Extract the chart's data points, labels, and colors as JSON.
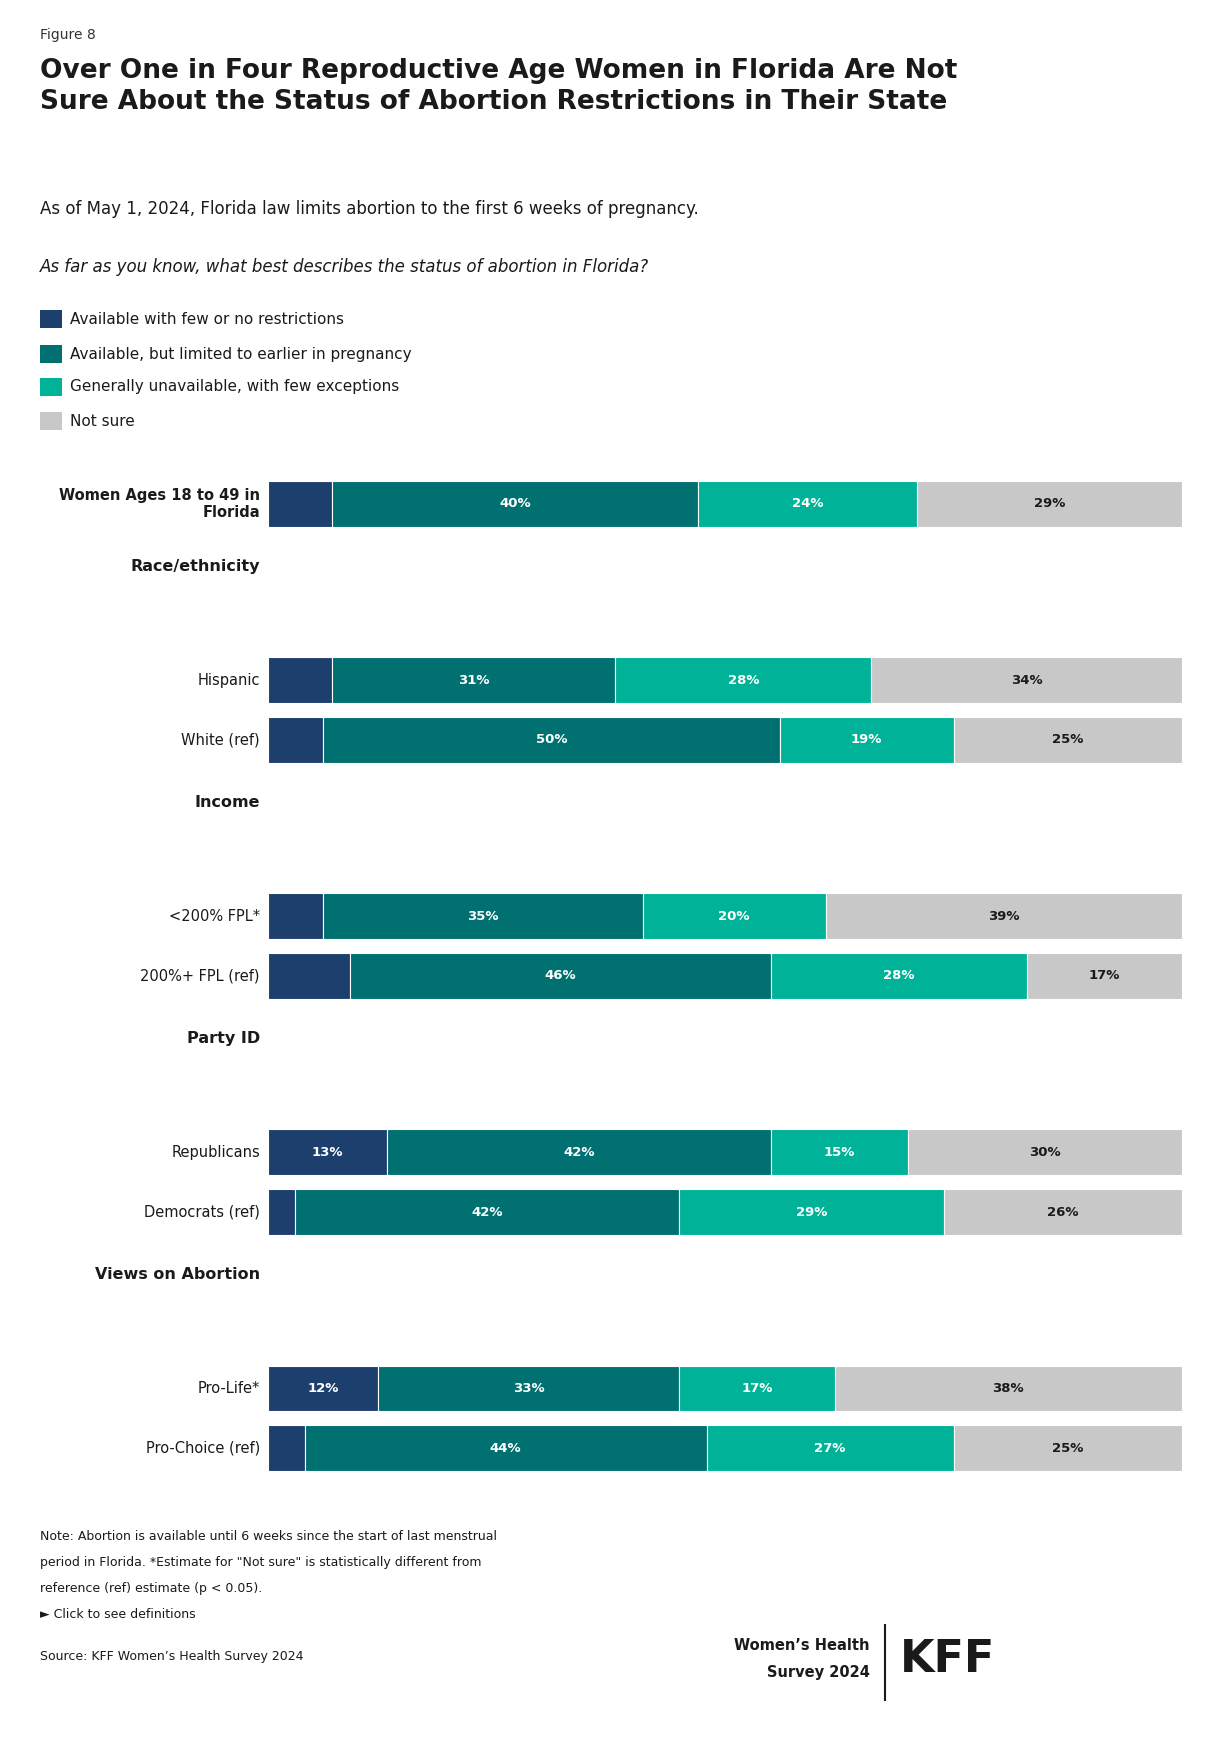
{
  "figure_label": "Figure 8",
  "title": "Over One in Four Reproductive Age Women in Florida Are Not\nSure About the Status of Abortion Restrictions in Their State",
  "subtitle": "As of May 1, 2024, Florida law limits abortion to the first 6 weeks of pregnancy.",
  "question": "As far as you know, what best describes the status of abortion in Florida?",
  "legend_labels": [
    "Available with few or no restrictions",
    "Available, but limited to earlier in pregnancy",
    "Generally unavailable, with few exceptions",
    "Not sure"
  ],
  "colors": [
    "#1c3f6e",
    "#007070",
    "#00b398",
    "#c8c8c8"
  ],
  "categories": [
    "Women Ages 18 to 49 in\nFlorida",
    "Hispanic",
    "White (ref)",
    "<200% FPL*",
    "200%+ FPL (ref)",
    "Republicans",
    "Democrats (ref)",
    "Pro-Life*",
    "Pro-Choice (ref)"
  ],
  "category_bold": [
    true,
    false,
    false,
    false,
    false,
    false,
    false,
    false,
    false
  ],
  "values": [
    [
      7,
      40,
      24,
      29
    ],
    [
      7,
      31,
      28,
      34
    ],
    [
      6,
      50,
      19,
      25
    ],
    [
      6,
      35,
      20,
      39
    ],
    [
      9,
      46,
      28,
      17
    ],
    [
      13,
      42,
      15,
      30
    ],
    [
      3,
      42,
      29,
      26
    ],
    [
      12,
      33,
      17,
      38
    ],
    [
      4,
      44,
      27,
      25
    ]
  ],
  "bar_labels": [
    [
      "",
      "40%",
      "24%",
      "29%"
    ],
    [
      "",
      "31%",
      "28%",
      "34%"
    ],
    [
      "",
      "50%",
      "19%",
      "25%"
    ],
    [
      "",
      "35%",
      "20%",
      "39%"
    ],
    [
      "",
      "46%",
      "28%",
      "17%"
    ],
    [
      "13%",
      "42%",
      "15%",
      "30%"
    ],
    [
      "",
      "42%",
      "29%",
      "26%"
    ],
    [
      "12%",
      "33%",
      "17%",
      "38%"
    ],
    [
      "",
      "44%",
      "27%",
      "25%"
    ]
  ],
  "section_headers": [
    "Race/ethnicity",
    "Income",
    "Party ID",
    "Views on Abortion"
  ],
  "section_before_cat": [
    1,
    3,
    5,
    7
  ],
  "note_line1": "Note: Abortion is available until 6 weeks since the start of last menstrual",
  "note_line2": "period in Florida. *Estimate for \"Not sure\" is statistically different from",
  "note_line3": "reference (ref) estimate (p < 0.05).",
  "note_line4": "► Click to see definitions",
  "source": "Source: KFF Women’s Health Survey 2024",
  "branding1": "Women’s Health",
  "branding2": "Survey 2024",
  "kff": "KFF",
  "background_color": "#ffffff"
}
